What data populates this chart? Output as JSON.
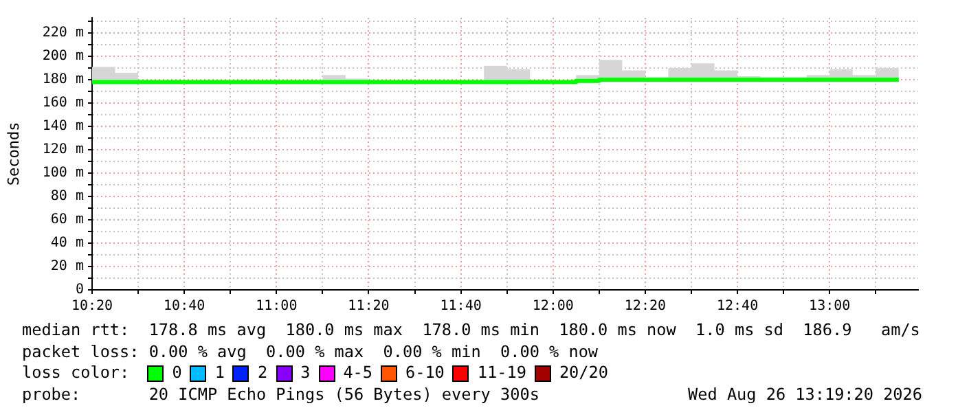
{
  "chart_data": {
    "type": "step",
    "ylabel": "Seconds",
    "x": [
      10.3333,
      10.4167,
      10.5,
      10.5833,
      10.6667,
      10.75,
      10.8333,
      10.9167,
      11.0,
      11.0833,
      11.1667,
      11.25,
      11.3333,
      11.4167,
      11.5,
      11.5833,
      11.6667,
      11.75,
      11.8333,
      11.9167,
      12.0,
      12.0833,
      12.1667,
      12.25,
      12.3333,
      12.4167,
      12.5,
      12.5833,
      12.6667,
      12.75,
      12.8333,
      12.9167,
      13.0,
      13.0833,
      13.1667,
      13.25
    ],
    "series": [
      {
        "color": "#00ff00",
        "values": [
          178,
          178,
          178,
          178,
          178,
          178,
          178,
          178,
          178,
          178,
          178,
          178,
          178,
          178,
          178,
          178,
          178,
          178,
          178,
          178,
          178,
          179,
          180,
          180,
          180,
          180,
          180,
          180,
          180,
          180,
          180,
          180,
          180,
          180,
          180,
          180
        ],
        "lower": [
          177,
          177,
          177,
          177,
          177,
          177,
          177,
          177,
          177,
          177,
          177,
          177,
          177,
          177,
          177,
          177,
          177,
          177,
          177,
          177,
          177,
          177,
          178,
          178,
          178,
          178,
          178,
          178,
          178,
          178,
          178,
          178,
          178,
          178,
          178,
          178
        ],
        "upper": [
          191,
          186,
          179,
          179,
          179,
          179,
          179,
          179,
          179,
          179,
          184,
          181,
          179,
          179,
          179,
          179,
          179,
          192,
          189,
          179,
          179,
          184,
          197,
          188,
          181,
          190,
          194,
          188,
          183,
          181,
          181,
          184,
          189,
          184,
          190,
          190
        ]
      }
    ],
    "xlim": [
      10.3333,
      13.32
    ],
    "xticks": [
      {
        "value": 10.3333,
        "label": "10:20"
      },
      {
        "value": 10.5,
        "label": null
      },
      {
        "value": 10.6667,
        "label": "10:40"
      },
      {
        "value": 10.8333,
        "label": null
      },
      {
        "value": 11.0,
        "label": "11:00"
      },
      {
        "value": 11.1667,
        "label": null
      },
      {
        "value": 11.3333,
        "label": "11:20"
      },
      {
        "value": 11.5,
        "label": null
      },
      {
        "value": 11.6667,
        "label": "11:40"
      },
      {
        "value": 11.8333,
        "label": null
      },
      {
        "value": 12.0,
        "label": "12:00"
      },
      {
        "value": 12.1667,
        "label": null
      },
      {
        "value": 12.3333,
        "label": "12:20"
      },
      {
        "value": 12.5,
        "label": null
      },
      {
        "value": 12.6667,
        "label": "12:40"
      },
      {
        "value": 12.8333,
        "label": null
      },
      {
        "value": 13.0,
        "label": "13:00"
      },
      {
        "value": 13.1667,
        "label": null
      }
    ],
    "ylim": [
      0,
      233
    ],
    "yticks": [
      0,
      {
        "value": 10,
        "label": null
      },
      {
        "value": 20,
        "label": "20 m"
      },
      {
        "value": 30,
        "label": null
      },
      {
        "value": 40,
        "label": "40 m"
      },
      {
        "value": 50,
        "label": null
      },
      {
        "value": 60,
        "label": "60 m"
      },
      {
        "value": 70,
        "label": null
      },
      {
        "value": 80,
        "label": "80 m"
      },
      {
        "value": 90,
        "label": null
      },
      {
        "value": 100,
        "label": "100 m"
      },
      {
        "value": 110,
        "label": null
      },
      {
        "value": 120,
        "label": "120 m"
      },
      {
        "value": 130,
        "label": null
      },
      {
        "value": 140,
        "label": "140 m"
      },
      {
        "value": 150,
        "label": null
      },
      {
        "value": 160,
        "label": "160 m"
      },
      {
        "value": 170,
        "label": null
      },
      {
        "value": 180,
        "label": "180 m"
      },
      {
        "value": 190,
        "label": null
      },
      {
        "value": 200,
        "label": "200 m"
      },
      {
        "value": 210,
        "label": null
      },
      {
        "value": 220,
        "label": "220 m"
      },
      {
        "value": 230,
        "label": null
      }
    ],
    "grid": true,
    "annotations": [
      "median rtt:  178.8 ms avg  180.0 ms max  178.0 ms min  180.0 ms now  1.0 ms sd  186.9   am/s",
      "packet loss: 0.00 % avg  0.00 % max  0.00 % min  0.00 % now",
      "loss color:",
      "0",
      "1",
      "2",
      "3",
      "4-5",
      "6-10",
      "11-19",
      "20/20",
      "probe:       20 ICMP Echo Pings (56 Bytes) every 300s",
      "Wed Aug 26 13:19:20 2026"
    ]
  }
}
